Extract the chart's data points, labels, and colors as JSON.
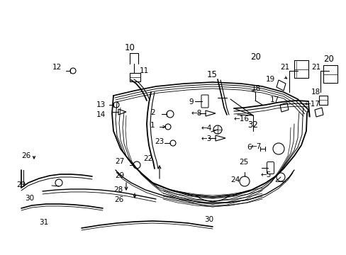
{
  "background_color": "#ffffff",
  "line_color": "#000000",
  "fig_width": 4.89,
  "fig_height": 3.6,
  "dpi": 100,
  "parts": {
    "bumper_main_outer": {
      "lw": 1.2
    },
    "bumper_inner_lines": {
      "lw": 0.7
    },
    "small_parts": {
      "lw": 0.8
    }
  },
  "label_fs": 8.5,
  "label_fs_small": 7.5
}
